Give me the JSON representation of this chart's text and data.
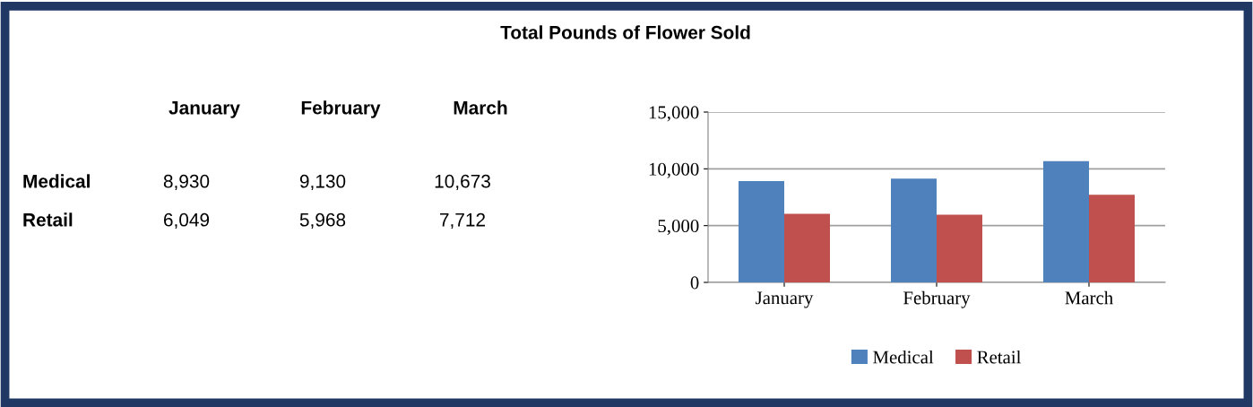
{
  "chart_data": [
    {
      "type": "other",
      "title": "Total Pounds of Flower Sold",
      "annotations": [
        "January",
        "February",
        "March",
        "Medical",
        "8,930",
        "9,130",
        "10,673",
        "Retail",
        "6,049",
        "5,968",
        "7,712"
      ]
    },
    {
      "type": "bar",
      "categories": [
        "January",
        "February",
        "March"
      ],
      "series": [
        {
          "name": "Medical",
          "color": "#4f81bd",
          "values": [
            8930,
            9130,
            10673
          ]
        },
        {
          "name": "Retail",
          "color": "#c0504d",
          "values": [
            6049,
            5968,
            7712
          ]
        }
      ],
      "ylim": [
        0,
        15000
      ],
      "yticks": [
        0,
        {
          "value": 5000,
          "label": "5,000"
        },
        {
          "value": 10000,
          "label": "10,000"
        },
        {
          "value": 15000,
          "label": "15,000"
        }
      ],
      "grid": "y",
      "legend": "bottom"
    }
  ]
}
